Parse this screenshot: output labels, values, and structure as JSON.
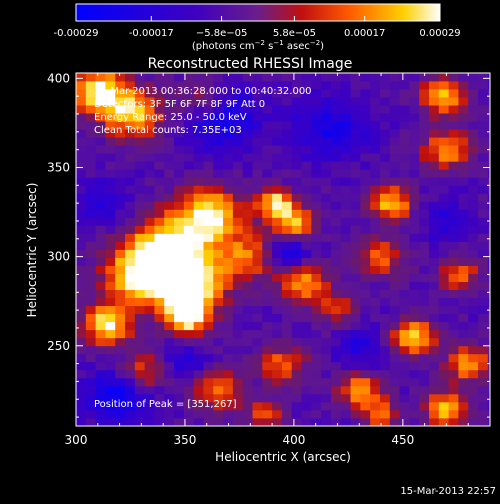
{
  "chart_data": {
    "type": "heatmap",
    "title": "Reconstructed RHESSI Image",
    "xlabel": "Heliocentric X (arcsec)",
    "ylabel": "Heliocentric Y (arcsec)",
    "xlim": [
      300,
      490
    ],
    "ylim": [
      205,
      403
    ],
    "x_ticks": [
      300,
      350,
      400,
      450
    ],
    "y_ticks": [
      250,
      300,
      350,
      400
    ],
    "colorbar": {
      "range": [
        -0.00029,
        0.00029
      ],
      "ticks": [
        -0.00029,
        -0.00017,
        -5.8e-05,
        5.8e-05,
        0.00017,
        0.00029
      ],
      "tick_labels": [
        "-0.00029",
        "-0.00017",
        "−5.8e−05",
        "5.8e−05",
        "0.00017",
        "0.00029"
      ],
      "unit_base": "(photons cm",
      "unit_exp1": "−2",
      "unit_mid": " s",
      "unit_exp2": "−1",
      "unit_end": " asec",
      "unit_exp3": "−2",
      "unit_close": ")"
    },
    "info": [
      "15-Mar-2013 00:36:28.000 to 00:40:32.000",
      "Detectors: 3F 5F 6F 7F 8F 9F Att 0",
      "Energy Range: 25.0 - 50.0 keV",
      "Clean    Total counts: 7.35E+03"
    ],
    "peak_label": "Position of Peak = [351,267]",
    "peak": [
      351,
      267
    ],
    "blobs": [
      {
        "x": 310,
        "y": 393,
        "amp": 0.95,
        "s": 9
      },
      {
        "x": 326,
        "y": 380,
        "amp": 0.8,
        "s": 10
      },
      {
        "x": 358,
        "y": 388,
        "amp": 0.45,
        "s": 8
      },
      {
        "x": 468,
        "y": 390,
        "amp": 0.85,
        "s": 7
      },
      {
        "x": 470,
        "y": 360,
        "amp": 0.7,
        "s": 8
      },
      {
        "x": 392,
        "y": 330,
        "amp": 0.9,
        "s": 6
      },
      {
        "x": 400,
        "y": 318,
        "amp": 0.75,
        "s": 7
      },
      {
        "x": 345,
        "y": 305,
        "amp": 1.0,
        "s": 14
      },
      {
        "x": 330,
        "y": 290,
        "amp": 0.9,
        "s": 12
      },
      {
        "x": 352,
        "y": 283,
        "amp": 0.9,
        "s": 11
      },
      {
        "x": 362,
        "y": 325,
        "amp": 0.85,
        "s": 10
      },
      {
        "x": 380,
        "y": 300,
        "amp": 0.6,
        "s": 10
      },
      {
        "x": 314,
        "y": 262,
        "amp": 0.9,
        "s": 8
      },
      {
        "x": 351,
        "y": 267,
        "amp": 1.05,
        "s": 7
      },
      {
        "x": 445,
        "y": 330,
        "amp": 0.8,
        "s": 7
      },
      {
        "x": 440,
        "y": 300,
        "amp": 0.55,
        "s": 8
      },
      {
        "x": 405,
        "y": 285,
        "amp": 0.7,
        "s": 8
      },
      {
        "x": 420,
        "y": 270,
        "amp": 0.45,
        "s": 7
      },
      {
        "x": 330,
        "y": 235,
        "amp": 0.6,
        "s": 8
      },
      {
        "x": 365,
        "y": 225,
        "amp": 0.65,
        "s": 8
      },
      {
        "x": 395,
        "y": 240,
        "amp": 0.55,
        "s": 8
      },
      {
        "x": 430,
        "y": 225,
        "amp": 0.7,
        "s": 7
      },
      {
        "x": 455,
        "y": 255,
        "amp": 0.85,
        "s": 7
      },
      {
        "x": 480,
        "y": 240,
        "amp": 0.75,
        "s": 7
      },
      {
        "x": 470,
        "y": 215,
        "amp": 0.8,
        "s": 7
      },
      {
        "x": 440,
        "y": 212,
        "amp": 0.6,
        "s": 6
      },
      {
        "x": 387,
        "y": 212,
        "amp": 0.5,
        "s": 6
      },
      {
        "x": 476,
        "y": 290,
        "amp": 0.55,
        "s": 7
      }
    ],
    "dips": [
      {
        "x": 367,
        "y": 378,
        "amp": 0.55,
        "s": 12
      },
      {
        "x": 417,
        "y": 372,
        "amp": 0.45,
        "s": 12
      },
      {
        "x": 397,
        "y": 302,
        "amp": 0.6,
        "s": 7
      },
      {
        "x": 320,
        "y": 222,
        "amp": 0.65,
        "s": 10
      },
      {
        "x": 312,
        "y": 330,
        "amp": 0.35,
        "s": 9
      },
      {
        "x": 470,
        "y": 320,
        "amp": 0.35,
        "s": 8
      },
      {
        "x": 430,
        "y": 250,
        "amp": 0.35,
        "s": 8
      },
      {
        "x": 350,
        "y": 240,
        "amp": 0.35,
        "s": 7
      }
    ]
  },
  "footer": {
    "timestamp": "15-Mar-2013 22:57"
  }
}
